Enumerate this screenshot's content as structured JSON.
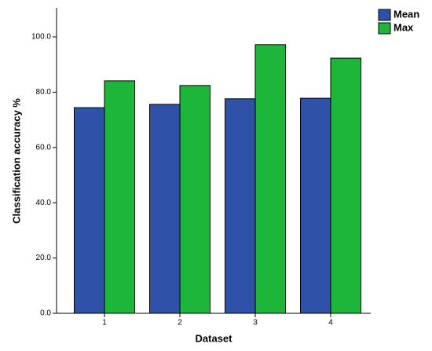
{
  "chart_data": {
    "type": "bar",
    "x_label": "Dataset",
    "y_label": "Classification accuracy %",
    "categories": [
      "1",
      "2",
      "3",
      "4"
    ],
    "series": [
      {
        "name": "Mean",
        "color": "#2f52a8",
        "values": [
          74.4,
          75.6,
          77.6,
          77.8
        ]
      },
      {
        "name": "Max",
        "color": "#1db53a",
        "values": [
          84.1,
          82.4,
          97.2,
          92.3
        ]
      }
    ],
    "ylim": [
      0,
      110.5
    ],
    "yticks": [
      {
        "value": 0,
        "label": "0.0"
      },
      {
        "value": 20,
        "label": "20.0"
      },
      {
        "value": 40,
        "label": "40.0"
      },
      {
        "value": 60,
        "label": "60.0"
      },
      {
        "value": 80,
        "label": "80.0"
      },
      {
        "value": 100,
        "label": "100.0"
      }
    ],
    "legend": "top-right"
  }
}
